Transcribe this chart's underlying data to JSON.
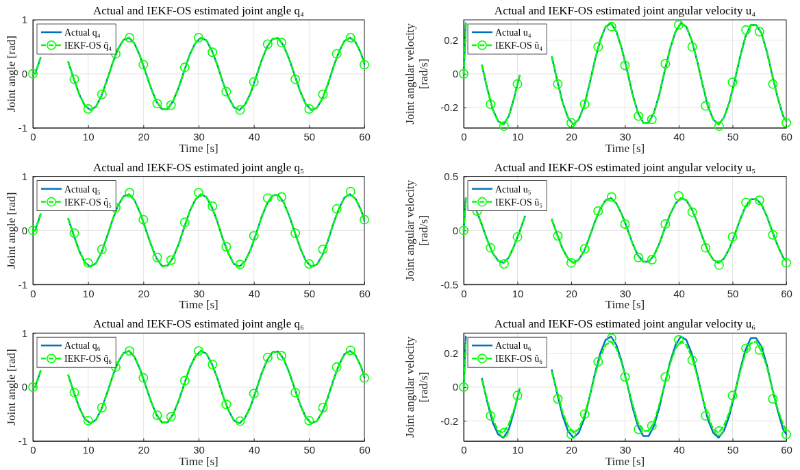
{
  "chart_data": [
    {
      "type": "line",
      "title": "Actual and IEKF-OS estimated joint angle q₄",
      "xlabel": "Time [s]",
      "ylabel": "Joint angle [rad]",
      "xlim": [
        0,
        60
      ],
      "xticks": [
        0,
        10,
        20,
        30,
        40,
        50,
        60
      ],
      "ylim": [
        -1,
        1
      ],
      "yticks": [
        -1,
        0,
        1
      ],
      "grid": true,
      "legend": "top left",
      "x": [
        0,
        0.4,
        1.4,
        2.4,
        3.4,
        4.4,
        5.4,
        6.4,
        7.4,
        8.4,
        9.4,
        10.4,
        11.4,
        12.4,
        13.4,
        14.4,
        15.4,
        16.4,
        17.4,
        18.4,
        19.4,
        20.4,
        21.4,
        22.4,
        23.4,
        24.4,
        25.4,
        26.4,
        27.4,
        28.4,
        29.4,
        30.4,
        31.4,
        32.4,
        33.4,
        34.4,
        35.4,
        36.4,
        37.4,
        38.4,
        39.4,
        40.4,
        41.4,
        42.4,
        43.4,
        44.4,
        45.4,
        46.4,
        47.4,
        48.4,
        49.4,
        50.4,
        51.4,
        52.4,
        53.4,
        54.4,
        55.4,
        56.4,
        57.4,
        58.4,
        59.4,
        60
      ],
      "series": [
        {
          "name": "Actual q₄",
          "color": "#0072bd",
          "line_style": "solid",
          "values": [
            0,
            0,
            0.3,
            null,
            null,
            null,
            null,
            0.22,
            -0.09,
            -0.38,
            -0.59,
            -0.67,
            -0.61,
            -0.41,
            -0.12,
            0.19,
            0.46,
            0.63,
            0.67,
            0.56,
            0.33,
            0.03,
            -0.27,
            -0.52,
            -0.66,
            -0.65,
            -0.5,
            -0.25,
            0.06,
            0.36,
            0.57,
            0.67,
            0.62,
            0.43,
            0.16,
            -0.16,
            -0.43,
            -0.62,
            -0.67,
            -0.57,
            -0.36,
            -0.06,
            0.25,
            0.5,
            0.65,
            0.66,
            0.52,
            0.27,
            -0.03,
            -0.33,
            -0.56,
            -0.67,
            -0.63,
            -0.46,
            -0.19,
            0.13,
            0.41,
            0.61,
            0.67,
            0.59,
            0.38,
            0.18
          ]
        },
        {
          "name": "IEKF-OS q̂₄",
          "color": "#00ff00",
          "line_style": "dashed",
          "values": [
            0,
            0,
            0.3,
            null,
            null,
            null,
            null,
            0.22,
            -0.09,
            -0.38,
            -0.59,
            -0.67,
            -0.61,
            -0.41,
            -0.12,
            0.19,
            0.46,
            0.63,
            0.67,
            0.56,
            0.33,
            0.03,
            -0.27,
            -0.52,
            -0.66,
            -0.65,
            -0.5,
            -0.25,
            0.06,
            0.36,
            0.57,
            0.67,
            0.62,
            0.43,
            0.16,
            -0.16,
            -0.43,
            -0.62,
            -0.67,
            -0.57,
            -0.36,
            -0.06,
            0.25,
            0.5,
            0.65,
            0.66,
            0.52,
            0.27,
            -0.03,
            -0.33,
            -0.56,
            -0.67,
            -0.63,
            -0.46,
            -0.19,
            0.13,
            0.41,
            0.61,
            0.67,
            0.59,
            0.38,
            0.18
          ]
        },
        {
          "type": "scatter",
          "color": "#00ff00",
          "marker": "circle",
          "x": [
            0,
            7.5,
            10,
            12.5,
            15,
            17.5,
            20,
            22.5,
            25,
            27.5,
            30,
            32.5,
            35,
            37.5,
            40,
            42.5,
            45,
            47.5,
            50,
            52.5,
            55,
            57.5,
            60
          ],
          "values": [
            0,
            -0.1,
            -0.65,
            -0.38,
            0.37,
            0.67,
            0.17,
            -0.55,
            -0.58,
            0.12,
            0.67,
            0.4,
            -0.33,
            -0.67,
            -0.15,
            0.55,
            0.58,
            -0.1,
            -0.65,
            -0.38,
            0.37,
            0.67,
            0.17
          ]
        }
      ]
    },
    {
      "type": "line",
      "title": "Actual and IEKF-OS estimated joint angular velocity u₄",
      "xlabel": "Time [s]",
      "ylabel": "Joint angular velocity [rad/s]",
      "xlim": [
        0,
        60
      ],
      "xticks": [
        0,
        10,
        20,
        30,
        40,
        50,
        60
      ],
      "ylim": [
        -0.32,
        0.32
      ],
      "yticks": [
        -0.2,
        0,
        0.2
      ],
      "grid": true,
      "legend": "top left",
      "x": [
        0,
        0.4,
        1.4,
        2.4,
        3.4,
        4.4,
        5.4,
        6.4,
        7.4,
        8.4,
        9.4,
        10.4,
        11.4,
        12.4,
        13.4,
        14.4,
        15.4,
        16.4,
        17.4,
        18.4,
        19.4,
        20.4,
        21.4,
        22.4,
        23.4,
        24.4,
        25.4,
        26.4,
        27.4,
        28.4,
        29.4,
        30.4,
        31.4,
        32.4,
        33.4,
        34.4,
        35.4,
        36.4,
        37.4,
        38.4,
        39.4,
        40.4,
        41.4,
        42.4,
        43.4,
        44.4,
        45.4,
        46.4,
        47.4,
        48.4,
        49.4,
        50.4,
        51.4,
        52.4,
        53.4,
        54.4,
        55.4,
        56.4,
        57.4,
        58.4,
        59.4,
        60
      ],
      "series": [
        {
          "name": "Actual u₄",
          "color": "#0072bd",
          "line_style": "solid",
          "values": [
            0,
            0.3,
            null,
            null,
            0.05,
            -0.09,
            -0.21,
            -0.28,
            -0.3,
            -0.25,
            -0.14,
            -0.01,
            null,
            null,
            null,
            null,
            null,
            0.1,
            -0.04,
            -0.17,
            -0.26,
            -0.3,
            -0.27,
            -0.19,
            -0.06,
            0.08,
            0.2,
            0.28,
            0.3,
            0.25,
            0.15,
            0.02,
            -0.12,
            -0.23,
            -0.29,
            -0.29,
            -0.23,
            -0.12,
            0.02,
            0.15,
            0.25,
            0.3,
            0.28,
            0.2,
            0.08,
            -0.06,
            -0.19,
            -0.27,
            -0.3,
            -0.26,
            -0.17,
            -0.04,
            0.1,
            0.22,
            0.29,
            0.29,
            0.24,
            0.13,
            -0.01,
            -0.14,
            -0.25,
            -0.28
          ]
        },
        {
          "name": "IEKF-OS û₄",
          "color": "#00ff00",
          "line_style": "dashed",
          "values": [
            0,
            0.3,
            null,
            null,
            0.05,
            -0.09,
            -0.21,
            -0.28,
            -0.3,
            -0.25,
            -0.14,
            -0.01,
            null,
            null,
            null,
            null,
            null,
            0.1,
            -0.04,
            -0.17,
            -0.26,
            -0.3,
            -0.27,
            -0.19,
            -0.06,
            0.08,
            0.2,
            0.28,
            0.3,
            0.25,
            0.15,
            0.02,
            -0.12,
            -0.23,
            -0.29,
            -0.29,
            -0.23,
            -0.12,
            0.02,
            0.15,
            0.25,
            0.3,
            0.28,
            0.2,
            0.08,
            -0.06,
            -0.19,
            -0.27,
            -0.3,
            -0.26,
            -0.17,
            -0.04,
            0.1,
            0.22,
            0.29,
            0.29,
            0.24,
            0.13,
            -0.01,
            -0.14,
            -0.25,
            -0.28
          ]
        },
        {
          "type": "scatter",
          "color": "#00ff00",
          "marker": "circle",
          "x": [
            0,
            5,
            7.5,
            10,
            17.5,
            20,
            22.5,
            25,
            27.5,
            30,
            32.5,
            35,
            37.5,
            40,
            42.5,
            45,
            47.5,
            50,
            52.5,
            55,
            57.5,
            60
          ],
          "values": [
            0,
            -0.18,
            -0.31,
            -0.06,
            -0.06,
            -0.29,
            -0.18,
            0.16,
            0.28,
            0.05,
            -0.25,
            -0.27,
            0.06,
            0.29,
            0.16,
            -0.19,
            -0.31,
            -0.05,
            0.26,
            0.25,
            -0.06,
            -0.29
          ]
        }
      ]
    },
    {
      "type": "line",
      "title": "Actual and IEKF-OS estimated joint angle q₅",
      "xlabel": "Time [s]",
      "ylabel": "Joint angle [rad]",
      "xlim": [
        0,
        60
      ],
      "xticks": [
        0,
        10,
        20,
        30,
        40,
        50,
        60
      ],
      "ylim": [
        -1,
        1
      ],
      "yticks": [
        -1,
        0,
        1
      ],
      "grid": true,
      "legend": "top left",
      "x": [
        0,
        0.4,
        1.4,
        2.4,
        3.4,
        4.4,
        5.4,
        6.4,
        7.4,
        8.4,
        9.4,
        10.4,
        11.4,
        12.4,
        13.4,
        14.4,
        15.4,
        16.4,
        17.4,
        18.4,
        19.4,
        20.4,
        21.4,
        22.4,
        23.4,
        24.4,
        25.4,
        26.4,
        27.4,
        28.4,
        29.4,
        30.4,
        31.4,
        32.4,
        33.4,
        34.4,
        35.4,
        36.4,
        37.4,
        38.4,
        39.4,
        40.4,
        41.4,
        42.4,
        43.4,
        44.4,
        45.4,
        46.4,
        47.4,
        48.4,
        49.4,
        50.4,
        51.4,
        52.4,
        53.4,
        54.4,
        55.4,
        56.4,
        57.4,
        58.4,
        59.4,
        60
      ],
      "series": [
        {
          "name": "Actual q₅",
          "color": "#0072bd",
          "line_style": "solid",
          "values": [
            0,
            0,
            0.3,
            null,
            null,
            null,
            null,
            0.22,
            -0.09,
            -0.38,
            -0.59,
            -0.67,
            -0.61,
            -0.41,
            -0.12,
            0.19,
            0.46,
            0.63,
            0.67,
            0.56,
            0.33,
            0.03,
            -0.27,
            -0.52,
            -0.66,
            -0.65,
            -0.5,
            -0.25,
            0.06,
            0.36,
            0.57,
            0.67,
            0.62,
            0.43,
            0.16,
            -0.16,
            -0.43,
            -0.62,
            -0.67,
            -0.57,
            -0.36,
            -0.06,
            0.25,
            0.5,
            0.65,
            0.66,
            0.52,
            0.27,
            -0.03,
            -0.33,
            -0.56,
            -0.67,
            -0.63,
            -0.46,
            -0.19,
            0.13,
            0.41,
            0.61,
            0.67,
            0.59,
            0.38,
            0.18
          ]
        },
        {
          "name": "IEKF-OS q̂₅",
          "color": "#00ff00",
          "line_style": "dashed",
          "values": [
            0,
            0,
            0.3,
            null,
            null,
            null,
            null,
            0.22,
            -0.09,
            -0.38,
            -0.59,
            -0.67,
            -0.61,
            -0.41,
            -0.12,
            0.19,
            0.46,
            0.63,
            0.67,
            0.56,
            0.33,
            0.03,
            -0.27,
            -0.52,
            -0.66,
            -0.65,
            -0.5,
            -0.25,
            0.06,
            0.36,
            0.57,
            0.67,
            0.62,
            0.43,
            0.16,
            -0.16,
            -0.43,
            -0.62,
            -0.67,
            -0.57,
            -0.36,
            -0.06,
            0.25,
            0.5,
            0.65,
            0.66,
            0.52,
            0.27,
            -0.03,
            -0.33,
            -0.56,
            -0.67,
            -0.63,
            -0.46,
            -0.19,
            0.13,
            0.41,
            0.61,
            0.67,
            0.59,
            0.38,
            0.18
          ]
        },
        {
          "type": "scatter",
          "color": "#00ff00",
          "marker": "circle",
          "x": [
            0,
            7.5,
            10,
            12.5,
            15,
            17.5,
            20,
            22.5,
            25,
            27.5,
            30,
            32.5,
            35,
            37.5,
            40,
            42.5,
            45,
            47.5,
            50,
            52.5,
            55,
            57.5,
            60
          ],
          "values": [
            0,
            -0.05,
            -0.6,
            -0.35,
            0.42,
            0.7,
            0.2,
            -0.5,
            -0.55,
            0.15,
            0.7,
            0.45,
            -0.3,
            -0.63,
            -0.1,
            0.6,
            0.62,
            -0.05,
            -0.62,
            -0.35,
            0.4,
            0.72,
            0.2
          ]
        }
      ]
    },
    {
      "type": "line",
      "title": "Actual and IEKF-OS estimated joint angular velocity u₅",
      "xlabel": "Time [s]",
      "ylabel": "Joint angular velocity [rad/s]",
      "xlim": [
        0,
        60
      ],
      "xticks": [
        0,
        10,
        20,
        30,
        40,
        50,
        60
      ],
      "ylim": [
        -0.5,
        0.5
      ],
      "yticks": [
        -0.5,
        0,
        0.5
      ],
      "grid": true,
      "legend": "top left",
      "x": [
        0,
        0.4,
        1.4,
        2.4,
        3.4,
        4.4,
        5.4,
        6.4,
        7.4,
        8.4,
        9.4,
        10.4,
        11.4,
        12.4,
        13.4,
        14.4,
        15.4,
        16.4,
        17.4,
        18.4,
        19.4,
        20.4,
        21.4,
        22.4,
        23.4,
        24.4,
        25.4,
        26.4,
        27.4,
        28.4,
        29.4,
        30.4,
        31.4,
        32.4,
        33.4,
        34.4,
        35.4,
        36.4,
        37.4,
        38.4,
        39.4,
        40.4,
        41.4,
        42.4,
        43.4,
        44.4,
        45.4,
        46.4,
        47.4,
        48.4,
        49.4,
        50.4,
        51.4,
        52.4,
        53.4,
        54.4,
        55.4,
        56.4,
        57.4,
        58.4,
        59.4,
        60
      ],
      "series": [
        {
          "name": "Actual u₅",
          "color": "#0072bd",
          "line_style": "solid",
          "values": [
            0,
            0.3,
            null,
            0.18,
            0.05,
            -0.09,
            -0.21,
            -0.28,
            -0.3,
            -0.25,
            -0.14,
            -0.01,
            0.13,
            null,
            null,
            null,
            null,
            0.1,
            -0.04,
            -0.17,
            -0.26,
            -0.3,
            -0.27,
            -0.19,
            -0.06,
            0.08,
            0.2,
            0.28,
            0.3,
            0.25,
            0.15,
            0.02,
            -0.12,
            -0.23,
            -0.29,
            -0.29,
            -0.23,
            -0.12,
            0.02,
            0.15,
            0.25,
            0.3,
            0.28,
            0.2,
            0.08,
            -0.06,
            -0.19,
            -0.27,
            -0.3,
            -0.26,
            -0.17,
            -0.04,
            0.1,
            0.22,
            0.29,
            0.29,
            0.24,
            0.13,
            -0.01,
            -0.14,
            -0.25,
            -0.28
          ]
        },
        {
          "name": "IEKF-OS û₅",
          "color": "#00ff00",
          "line_style": "dashed",
          "values": [
            0,
            0.3,
            null,
            0.18,
            0.05,
            -0.09,
            -0.21,
            -0.28,
            -0.3,
            -0.25,
            -0.14,
            -0.01,
            0.13,
            null,
            null,
            null,
            null,
            0.1,
            -0.04,
            -0.17,
            -0.26,
            -0.3,
            -0.27,
            -0.19,
            -0.06,
            0.08,
            0.2,
            0.28,
            0.3,
            0.25,
            0.15,
            0.02,
            -0.12,
            -0.23,
            -0.29,
            -0.29,
            -0.23,
            -0.12,
            0.02,
            0.15,
            0.25,
            0.3,
            0.28,
            0.2,
            0.08,
            -0.06,
            -0.19,
            -0.27,
            -0.3,
            -0.26,
            -0.17,
            -0.04,
            0.1,
            0.22,
            0.29,
            0.29,
            0.24,
            0.13,
            -0.01,
            -0.14,
            -0.25,
            -0.28
          ]
        },
        {
          "type": "scatter",
          "color": "#00ff00",
          "marker": "circle",
          "x": [
            0,
            2.5,
            5,
            7.5,
            10,
            17.5,
            20,
            22.5,
            25,
            27.5,
            30,
            32.5,
            35,
            37.5,
            40,
            42.5,
            45,
            47.5,
            50,
            52.5,
            55,
            57.5,
            60
          ],
          "values": [
            0,
            0.18,
            -0.16,
            -0.31,
            -0.06,
            -0.05,
            -0.3,
            -0.17,
            0.18,
            0.31,
            0.06,
            -0.25,
            -0.27,
            0.06,
            0.32,
            0.17,
            -0.16,
            -0.32,
            -0.06,
            0.26,
            0.28,
            -0.04,
            -0.3
          ]
        }
      ]
    },
    {
      "type": "line",
      "title": "Actual and IEKF-OS estimated joint angle q₆",
      "xlabel": "Time [s]",
      "ylabel": "Joint angle [rad]",
      "xlim": [
        0,
        60
      ],
      "xticks": [
        0,
        10,
        20,
        30,
        40,
        50,
        60
      ],
      "ylim": [
        -1,
        1
      ],
      "yticks": [
        -1,
        0,
        1
      ],
      "grid": true,
      "legend": "top left",
      "x": [
        0,
        0.4,
        1.4,
        2.4,
        3.4,
        4.4,
        5.4,
        6.4,
        7.4,
        8.4,
        9.4,
        10.4,
        11.4,
        12.4,
        13.4,
        14.4,
        15.4,
        16.4,
        17.4,
        18.4,
        19.4,
        20.4,
        21.4,
        22.4,
        23.4,
        24.4,
        25.4,
        26.4,
        27.4,
        28.4,
        29.4,
        30.4,
        31.4,
        32.4,
        33.4,
        34.4,
        35.4,
        36.4,
        37.4,
        38.4,
        39.4,
        40.4,
        41.4,
        42.4,
        43.4,
        44.4,
        45.4,
        46.4,
        47.4,
        48.4,
        49.4,
        50.4,
        51.4,
        52.4,
        53.4,
        54.4,
        55.4,
        56.4,
        57.4,
        58.4,
        59.4,
        60
      ],
      "series": [
        {
          "name": "Actual q₆",
          "color": "#0072bd",
          "line_style": "solid",
          "values": [
            0,
            0,
            0.3,
            null,
            null,
            null,
            null,
            0.22,
            -0.09,
            -0.38,
            -0.59,
            -0.67,
            -0.61,
            -0.41,
            -0.12,
            0.19,
            0.46,
            0.63,
            0.67,
            0.56,
            0.33,
            0.03,
            -0.27,
            -0.52,
            -0.66,
            -0.65,
            -0.5,
            -0.25,
            0.06,
            0.36,
            0.57,
            0.67,
            0.62,
            0.43,
            0.16,
            -0.16,
            -0.43,
            -0.62,
            -0.67,
            -0.57,
            -0.36,
            -0.06,
            0.25,
            0.5,
            0.65,
            0.66,
            0.52,
            0.27,
            -0.03,
            -0.33,
            -0.56,
            -0.67,
            -0.63,
            -0.46,
            -0.19,
            0.13,
            0.41,
            0.61,
            0.67,
            0.59,
            0.38,
            0.18
          ]
        },
        {
          "name": "IEKF-OS q̂₆",
          "color": "#00ff00",
          "line_style": "dashed",
          "values": [
            0,
            0,
            0.3,
            null,
            null,
            null,
            null,
            0.22,
            -0.09,
            -0.38,
            -0.59,
            -0.67,
            -0.61,
            -0.41,
            -0.12,
            0.19,
            0.46,
            0.63,
            0.67,
            0.56,
            0.33,
            0.03,
            -0.27,
            -0.52,
            -0.66,
            -0.65,
            -0.5,
            -0.25,
            0.06,
            0.36,
            0.57,
            0.67,
            0.62,
            0.43,
            0.16,
            -0.16,
            -0.43,
            -0.62,
            -0.67,
            -0.57,
            -0.36,
            -0.06,
            0.25,
            0.5,
            0.65,
            0.66,
            0.52,
            0.27,
            -0.03,
            -0.33,
            -0.56,
            -0.67,
            -0.63,
            -0.46,
            -0.19,
            0.13,
            0.41,
            0.61,
            0.67,
            0.59,
            0.38,
            0.18
          ]
        },
        {
          "type": "scatter",
          "color": "#00ff00",
          "marker": "circle",
          "x": [
            0,
            7.5,
            10,
            12.5,
            15,
            17.5,
            20,
            22.5,
            25,
            27.5,
            30,
            32.5,
            35,
            37.5,
            40,
            42.5,
            45,
            47.5,
            50,
            52.5,
            55,
            57.5,
            60
          ],
          "values": [
            0,
            -0.1,
            -0.62,
            -0.38,
            0.37,
            0.67,
            0.17,
            -0.52,
            -0.55,
            0.12,
            0.67,
            0.42,
            -0.32,
            -0.63,
            -0.12,
            0.55,
            0.58,
            -0.1,
            -0.62,
            -0.38,
            0.37,
            0.68,
            0.17
          ]
        }
      ]
    },
    {
      "type": "line",
      "title": "Actual and IEKF-OS estimated joint angular velocity u₆",
      "xlabel": "Time [s]",
      "ylabel": "Joint angular velocity [rad/s]",
      "xlim": [
        0,
        60
      ],
      "xticks": [
        0,
        10,
        20,
        30,
        40,
        50,
        60
      ],
      "ylim": [
        -0.32,
        0.32
      ],
      "yticks": [
        -0.2,
        0,
        0.2
      ],
      "grid": true,
      "legend": "top left",
      "x": [
        0,
        0.4,
        1.4,
        2.4,
        3.4,
        4.4,
        5.4,
        6.4,
        7.4,
        8.4,
        9.4,
        10.4,
        11.4,
        12.4,
        13.4,
        14.4,
        15.4,
        16.4,
        17.4,
        18.4,
        19.4,
        20.4,
        21.4,
        22.4,
        23.4,
        24.4,
        25.4,
        26.4,
        27.4,
        28.4,
        29.4,
        30.4,
        31.4,
        32.4,
        33.4,
        34.4,
        35.4,
        36.4,
        37.4,
        38.4,
        39.4,
        40.4,
        41.4,
        42.4,
        43.4,
        44.4,
        45.4,
        46.4,
        47.4,
        48.4,
        49.4,
        50.4,
        51.4,
        52.4,
        53.4,
        54.4,
        55.4,
        56.4,
        57.4,
        58.4,
        59.4,
        60
      ],
      "series": [
        {
          "name": "Actual u₆",
          "color": "#0072bd",
          "line_style": "solid",
          "values": [
            0,
            0.3,
            null,
            null,
            0.05,
            -0.09,
            -0.21,
            -0.28,
            -0.3,
            -0.25,
            -0.14,
            -0.01,
            null,
            null,
            null,
            null,
            null,
            0.1,
            -0.04,
            -0.17,
            -0.26,
            -0.3,
            -0.27,
            -0.19,
            -0.06,
            0.08,
            0.2,
            0.28,
            0.3,
            0.25,
            0.15,
            0.02,
            -0.12,
            -0.23,
            -0.29,
            -0.29,
            -0.23,
            -0.12,
            0.02,
            0.15,
            0.25,
            0.3,
            0.28,
            0.2,
            0.08,
            -0.06,
            -0.19,
            -0.27,
            -0.3,
            -0.26,
            -0.17,
            -0.04,
            0.1,
            0.22,
            0.29,
            0.29,
            0.24,
            0.13,
            -0.01,
            -0.14,
            -0.25,
            -0.28
          ]
        },
        {
          "name": "IEKF-OS û₆",
          "color": "#00ff00",
          "line_style": "dashed",
          "values": [
            0,
            0.27,
            null,
            null,
            0.04,
            -0.08,
            -0.19,
            -0.26,
            -0.27,
            -0.22,
            -0.13,
            -0.01,
            null,
            null,
            null,
            null,
            null,
            0.09,
            -0.03,
            -0.15,
            -0.23,
            -0.27,
            -0.25,
            -0.17,
            -0.06,
            0.07,
            0.18,
            0.25,
            0.27,
            0.23,
            0.14,
            0.02,
            -0.1,
            -0.21,
            -0.26,
            -0.26,
            -0.21,
            -0.1,
            0.02,
            0.14,
            0.23,
            0.27,
            0.25,
            0.18,
            0.07,
            -0.06,
            -0.17,
            -0.25,
            -0.27,
            -0.23,
            -0.15,
            -0.03,
            0.09,
            0.2,
            0.26,
            0.27,
            0.21,
            0.12,
            -0.01,
            -0.13,
            -0.22,
            -0.26
          ]
        },
        {
          "type": "scatter",
          "color": "#00ff00",
          "marker": "circle",
          "x": [
            0,
            5,
            7.5,
            10,
            17.5,
            20,
            22.5,
            25,
            27.5,
            30,
            32.5,
            35,
            37.5,
            40,
            42.5,
            45,
            47.5,
            50,
            52.5,
            55,
            57.5,
            60
          ],
          "values": [
            0,
            -0.17,
            -0.27,
            -0.05,
            -0.07,
            -0.28,
            -0.16,
            0.15,
            0.29,
            0.06,
            -0.25,
            -0.23,
            0.06,
            0.28,
            0.16,
            -0.17,
            -0.26,
            -0.05,
            0.23,
            0.22,
            -0.07,
            -0.28
          ]
        }
      ]
    }
  ]
}
